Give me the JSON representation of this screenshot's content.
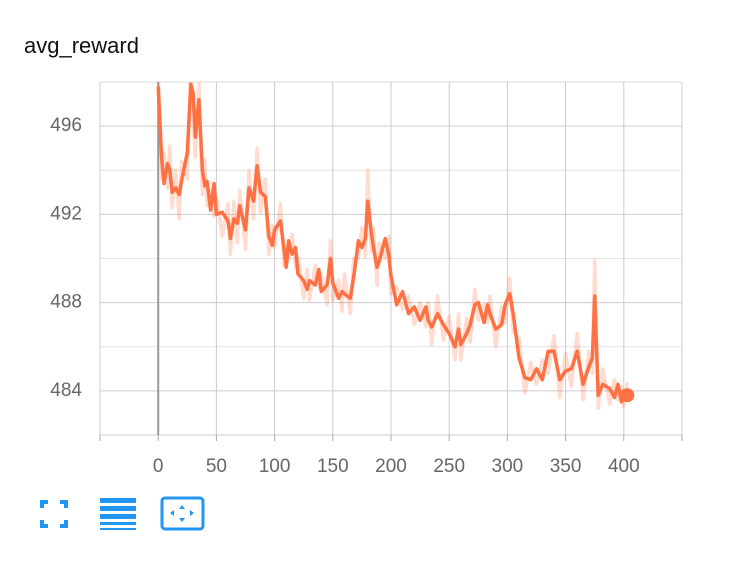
{
  "chart_data": {
    "type": "line",
    "title": "avg_reward",
    "x": [
      0,
      3,
      5,
      8,
      10,
      12,
      15,
      18,
      20,
      25,
      28,
      30,
      32,
      35,
      38,
      40,
      42,
      45,
      48,
      50,
      55,
      60,
      62,
      65,
      68,
      70,
      75,
      78,
      82,
      85,
      88,
      92,
      95,
      98,
      100,
      105,
      108,
      110,
      112,
      115,
      118,
      120,
      125,
      128,
      130,
      135,
      138,
      140,
      145,
      148,
      150,
      155,
      158,
      160,
      165,
      168,
      172,
      175,
      178,
      180,
      183,
      185,
      188,
      190,
      195,
      198,
      200,
      205,
      210,
      215,
      220,
      225,
      230,
      232,
      235,
      240,
      245,
      250,
      255,
      258,
      260,
      265,
      268,
      272,
      275,
      280,
      283,
      285,
      290,
      295,
      298,
      302,
      305,
      310,
      315,
      320,
      325,
      330,
      335,
      340,
      345,
      350,
      355,
      360,
      365,
      370,
      373,
      375,
      378,
      382,
      388,
      392,
      395,
      398,
      400,
      403
    ],
    "series": [
      {
        "color": "#ff7043",
        "opacity": 0.25,
        "values": [
          498.5,
          493.6,
          494.8,
          493.2,
          495.1,
          492.3,
          494.0,
          491.8,
          494.4,
          493.6,
          498.5,
          496.2,
          494.6,
          498.0,
          492.9,
          494.5,
          492.4,
          493.1,
          491.9,
          492.8,
          491.0,
          492.5,
          490.2,
          492.6,
          490.7,
          493.1,
          490.4,
          494.0,
          491.8,
          495.0,
          492.1,
          493.6,
          490.2,
          491.5,
          490.5,
          492.5,
          489.7,
          490.4,
          489.9,
          491.1,
          489.6,
          490.1,
          488.2,
          489.5,
          488.1,
          489.7,
          488.7,
          489.3,
          487.9,
          490.8,
          488.1,
          489.0,
          487.6,
          489.3,
          487.5,
          490.0,
          490.0,
          491.4,
          490.1,
          494.0,
          490.3,
          491.4,
          488.8,
          490.7,
          490.0,
          491.0,
          488.4,
          488.7,
          487.7,
          488.3,
          487.0,
          488.0,
          486.9,
          488.0,
          486.1,
          488.3,
          486.3,
          487.4,
          485.4,
          487.5,
          485.4,
          487.3,
          486.2,
          488.6,
          487.2,
          487.9,
          487.1,
          488.3,
          486.0,
          487.8,
          487.1,
          489.1,
          486.7,
          486.4,
          483.9,
          485.3,
          484.3,
          485.4,
          484.8,
          486.5,
          483.7,
          485.7,
          484.2,
          486.6,
          483.6,
          485.8,
          484.8,
          489.9,
          483.2,
          485.0,
          483.4,
          484.5,
          483.6,
          484.2,
          483.3,
          484.4
        ]
      },
      {
        "color": "#ff7043",
        "opacity": 1,
        "values": [
          497.8,
          494.5,
          493.4,
          494.3,
          494.0,
          493.0,
          493.2,
          492.9,
          493.5,
          494.8,
          497.9,
          497.5,
          495.5,
          497.2,
          494.0,
          493.3,
          493.5,
          492.2,
          493.4,
          492.0,
          492.1,
          491.7,
          490.9,
          491.8,
          491.6,
          492.4,
          491.3,
          493.2,
          492.6,
          494.2,
          493.0,
          492.8,
          491.0,
          490.6,
          491.3,
          491.7,
          490.5,
          489.6,
          490.8,
          490.2,
          490.5,
          489.3,
          489.0,
          488.6,
          489.0,
          488.8,
          489.5,
          488.5,
          488.8,
          490.0,
          488.9,
          488.2,
          488.5,
          488.4,
          488.2,
          489.2,
          490.8,
          490.5,
          490.9,
          492.6,
          491.2,
          490.5,
          489.6,
          489.9,
          490.9,
          490.2,
          489.2,
          487.9,
          488.5,
          487.5,
          487.8,
          487.2,
          487.8,
          487.2,
          486.9,
          487.5,
          487.0,
          486.6,
          486.0,
          486.8,
          486.1,
          486.6,
          487.0,
          487.9,
          488.0,
          487.1,
          487.9,
          487.5,
          486.8,
          487.0,
          487.9,
          488.4,
          487.5,
          485.5,
          484.6,
          484.5,
          485.0,
          484.5,
          485.8,
          485.8,
          484.5,
          484.9,
          485.0,
          485.8,
          484.3,
          485.1,
          485.5,
          488.3,
          483.8,
          484.3,
          484.1,
          483.7,
          484.3,
          483.5,
          484.0,
          483.8
        ]
      }
    ],
    "xlim": [
      -50,
      450
    ],
    "ylim": [
      482,
      498
    ],
    "xticks": [
      0,
      50,
      100,
      150,
      200,
      250,
      300,
      350,
      400
    ],
    "yticks": [
      484,
      488,
      492,
      496
    ],
    "y_minor_ticks": [
      486,
      490,
      494
    ],
    "grid": true
  }
}
